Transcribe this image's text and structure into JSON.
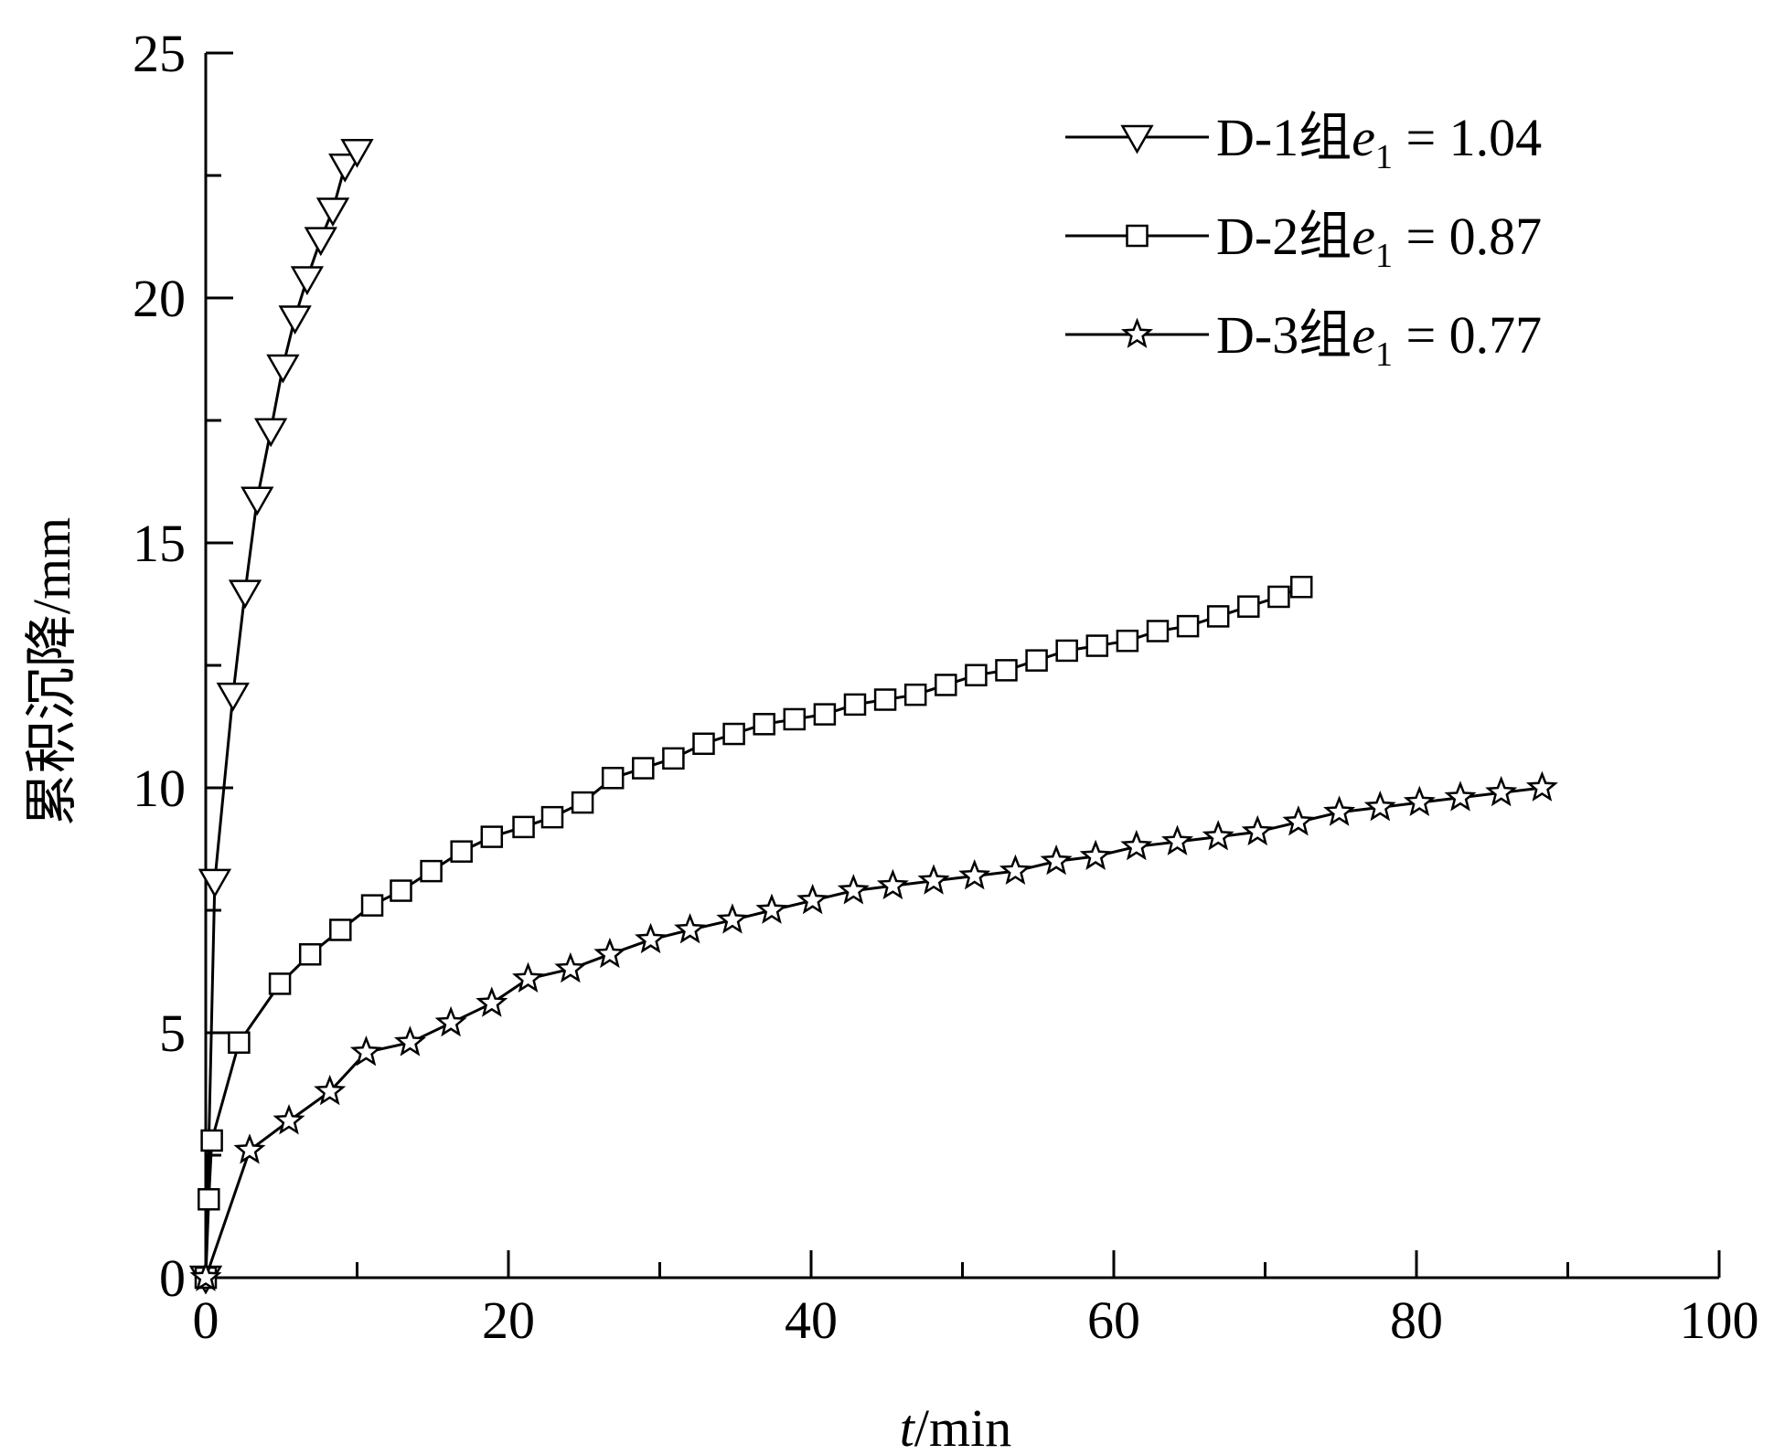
{
  "chart_data": {
    "type": "line",
    "xlabel_italic": "t",
    "xlabel_rest": "/min",
    "ylabel": "累积沉降/mm",
    "xlim": [
      0,
      100
    ],
    "ylim": [
      0,
      25
    ],
    "xticks": [
      "0",
      "20",
      "40",
      "60",
      "80",
      "100"
    ],
    "yticks": [
      "0",
      "5",
      "10",
      "15",
      "20",
      "25"
    ],
    "x_major_step": 20,
    "x_minor_step": 10,
    "y_major_step": 5,
    "y_minor_step": 2.5,
    "grid": false,
    "legend_position": "top-right",
    "series": [
      {
        "name_prefix": "D-1组",
        "name_var": "e",
        "name_sub": "1",
        "name_value": " = 1.04",
        "marker": "triangle-down",
        "x": [
          0,
          0.6,
          1.8,
          2.6,
          3.4,
          4.3,
          5.1,
          5.9,
          6.7,
          7.6,
          8.4,
          9.2,
          10.0
        ],
        "y": [
          0,
          8.1,
          11.9,
          14.0,
          15.9,
          17.3,
          18.6,
          19.6,
          20.4,
          21.2,
          21.8,
          22.7,
          23.0
        ]
      },
      {
        "name_prefix": "D-2组",
        "name_var": "e",
        "name_sub": "1",
        "name_value": " = 0.87",
        "marker": "square",
        "x": [
          0,
          0.2,
          0.4,
          2.2,
          4.9,
          6.9,
          8.9,
          11.0,
          12.9,
          14.9,
          16.9,
          18.9,
          21.0,
          22.9,
          24.9,
          26.9,
          28.9,
          30.9,
          32.9,
          34.9,
          36.9,
          38.9,
          40.9,
          42.9,
          44.9,
          46.9,
          48.9,
          50.9,
          52.9,
          54.9,
          56.9,
          58.9,
          60.9,
          62.9,
          64.9,
          66.9,
          68.9,
          70.9,
          72.4
        ],
        "y": [
          0,
          1.6,
          2.8,
          4.8,
          6.0,
          6.6,
          7.1,
          7.6,
          7.9,
          8.3,
          8.7,
          9.0,
          9.2,
          9.4,
          9.7,
          10.2,
          10.4,
          10.6,
          10.9,
          11.1,
          11.3,
          11.4,
          11.5,
          11.7,
          11.8,
          11.9,
          12.1,
          12.3,
          12.4,
          12.6,
          12.8,
          12.9,
          13.0,
          13.2,
          13.3,
          13.5,
          13.7,
          13.9,
          14.1
        ]
      },
      {
        "name_prefix": "D-3组",
        "name_var": "e",
        "name_sub": "1",
        "name_value": " = 0.77",
        "marker": "star",
        "x": [
          0,
          2.9,
          5.5,
          8.2,
          10.6,
          13.5,
          16.2,
          18.9,
          21.3,
          24.1,
          26.7,
          29.4,
          32.0,
          34.8,
          37.4,
          40.1,
          42.8,
          45.4,
          48.1,
          50.8,
          53.5,
          56.2,
          58.8,
          61.5,
          64.2,
          66.9,
          69.5,
          72.2,
          74.9,
          77.6,
          80.2,
          82.9,
          85.6,
          88.3
        ],
        "y": [
          0,
          2.6,
          3.2,
          3.8,
          4.6,
          4.8,
          5.2,
          5.6,
          6.1,
          6.3,
          6.6,
          6.9,
          7.1,
          7.3,
          7.5,
          7.7,
          7.9,
          8.0,
          8.1,
          8.2,
          8.3,
          8.5,
          8.6,
          8.8,
          8.9,
          9.0,
          9.1,
          9.3,
          9.5,
          9.6,
          9.7,
          9.8,
          9.9,
          10.0
        ]
      }
    ]
  }
}
